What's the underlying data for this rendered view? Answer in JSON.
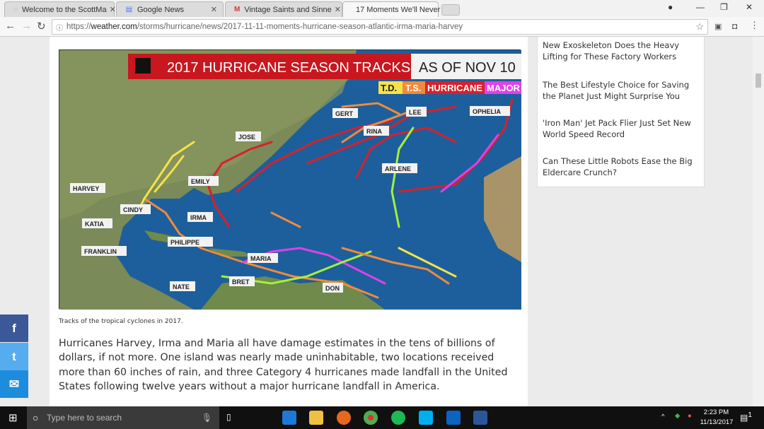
{
  "browser": {
    "tabs": [
      {
        "title": "Welcome to the ScottMa",
        "icon": "globe-icon",
        "active": false
      },
      {
        "title": "Google News",
        "icon": "google-news-icon",
        "active": false
      },
      {
        "title": "Vintage Saints and Sinne",
        "icon": "gmail-icon",
        "active": false
      },
      {
        "title": "17 Moments We'll Never",
        "icon": "weather-channel-icon",
        "active": true
      }
    ],
    "url_scheme": "https://",
    "url_domain": "weather.com",
    "url_path": "/storms/hurricane/news/2017-11-11-moments-hurricane-season-atlantic-irma-maria-harvey"
  },
  "article": {
    "map": {
      "title": "2017 HURRICANE SEASON TRACKS",
      "as_of": "AS OF NOV 10",
      "legend": [
        {
          "label": "T.D.",
          "color": "#f5e14a"
        },
        {
          "label": "T.S.",
          "color": "#f08a3c"
        },
        {
          "label": "HURRICANE",
          "color": "#d8202a"
        },
        {
          "label": "MAJOR",
          "color": "#e040e8"
        }
      ],
      "storms": [
        "HARVEY",
        "CINDY",
        "KATIA",
        "FRANKLIN",
        "EMILY",
        "IRMA",
        "PHILIPPE",
        "JOSE",
        "NATE",
        "MARIA",
        "BRET",
        "DON",
        "GERT",
        "LEE",
        "RINA",
        "OPHELIA",
        "ARLENE"
      ]
    },
    "caption": "Tracks of the tropical cyclones in 2017.",
    "paragraph": "Hurricanes Harvey, Irma and Maria all have damage estimates in the tens of billions of dollars, if not more. One island was nearly made uninhabitable, two locations received more than 60 inches of rain, and three Category 4 hurricanes made landfall in the United States following twelve years without a major hurricane landfall in America."
  },
  "sidebar": {
    "links": [
      "New Exoskeleton Does the Heavy Lifting for These Factory Workers",
      "The Best Lifestyle Choice for Saving the Planet Just Might Surprise You",
      "'Iron Man' Jet Pack Flier Just Set New World Speed Record",
      "Can These Little Robots Ease the Big Eldercare Crunch?"
    ]
  },
  "share": {
    "facebook": "f",
    "twitter": "t",
    "email": "✉",
    "colors": {
      "facebook": "#3b5998",
      "twitter": "#55acee",
      "email": "#1e8cdc"
    }
  },
  "taskbar": {
    "search_placeholder": "Type here to search",
    "time": "2:23 PM",
    "date": "11/13/2017",
    "notifications": "1"
  }
}
